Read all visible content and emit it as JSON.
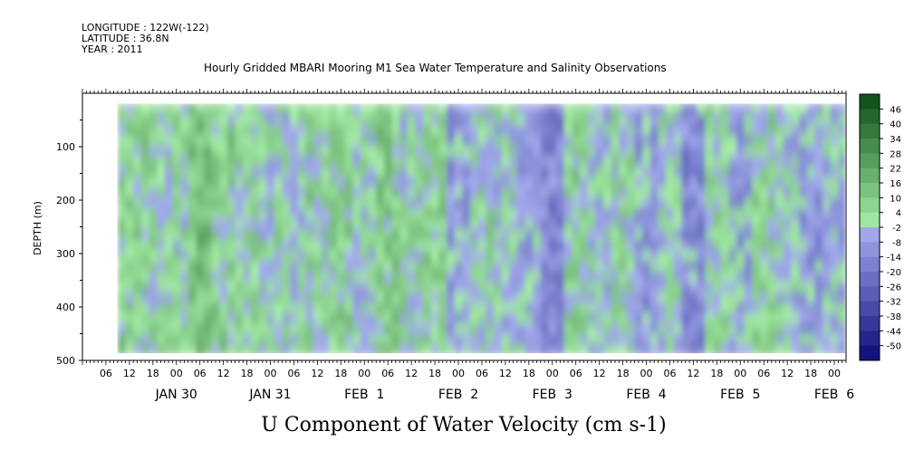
{
  "header": {
    "longitude": "LONGITUDE : 122W(-122)",
    "latitude": "LATITUDE : 36.8N",
    "year": "YEAR : 2011",
    "title": "Hourly Gridded MBARI Mooring M1 Sea Water Temperature and Salinity Observations"
  },
  "chart_data": {
    "type": "heatmap",
    "title": "U Component of Water Velocity (cm s-1)",
    "ylabel": "DEPTH (m)",
    "ylim": [
      500,
      0
    ],
    "data_depth_range": [
      20,
      490
    ],
    "yticks": [
      100,
      200,
      300,
      400,
      500
    ],
    "xlim": [
      "JAN 29 00",
      "FEB 6 03"
    ],
    "x_hour_ticks": [
      "06",
      "12",
      "18",
      "00",
      "06",
      "12",
      "18",
      "00",
      "06",
      "12",
      "18",
      "00",
      "06",
      "12",
      "18",
      "00",
      "06",
      "12",
      "18",
      "00",
      "06",
      "12",
      "18",
      "00",
      "06",
      "12",
      "18",
      "00",
      "06",
      "12",
      "18",
      "00"
    ],
    "x_day_labels": [
      "JAN 30",
      "JAN 31",
      "FEB  1",
      "FEB  2",
      "FEB  3",
      "FEB  4",
      "FEB  5",
      "FEB  6"
    ],
    "colorbar": {
      "levels": [
        -50,
        -44,
        -38,
        -32,
        -26,
        -20,
        -14,
        -8,
        -2,
        4,
        10,
        16,
        22,
        28,
        34,
        40,
        46
      ],
      "min": -50,
      "max": 50,
      "low_color": "#0a0a78",
      "mid_low": "#a0a8f0",
      "mid_high": "#a8f0a8",
      "high_color": "#0a4a14"
    },
    "time_bands_cms": [
      {
        "day": "JAN 29 12",
        "u": 8
      },
      {
        "day": "JAN 29 18",
        "u": 6
      },
      {
        "day": "JAN 30 00",
        "u": 4
      },
      {
        "day": "JAN 30 06",
        "u": 14
      },
      {
        "day": "JAN 30 12",
        "u": 8
      },
      {
        "day": "JAN 30 18",
        "u": 6
      },
      {
        "day": "JAN 31 00",
        "u": 4
      },
      {
        "day": "JAN 31 06",
        "u": 2
      },
      {
        "day": "JAN 31 12",
        "u": 6
      },
      {
        "day": "JAN 31 18",
        "u": 8
      },
      {
        "day": "FEB 1 00",
        "u": 2
      },
      {
        "day": "FEB 1 06",
        "u": 10
      },
      {
        "day": "FEB 1 12",
        "u": 4
      },
      {
        "day": "FEB 1 18",
        "u": 8
      },
      {
        "day": "FEB 2 00",
        "u": -6
      },
      {
        "day": "FEB 2 06",
        "u": 4
      },
      {
        "day": "FEB 2 12",
        "u": 2
      },
      {
        "day": "FEB 2 18",
        "u": -4
      },
      {
        "day": "FEB 3 00",
        "u": -12
      },
      {
        "day": "FEB 3 06",
        "u": 6
      },
      {
        "day": "FEB 3 12",
        "u": 0
      },
      {
        "day": "FEB 3 18",
        "u": 4
      },
      {
        "day": "FEB 4 00",
        "u": -6
      },
      {
        "day": "FEB 4 06",
        "u": 2
      },
      {
        "day": "FEB 4 12",
        "u": -10
      },
      {
        "day": "FEB 4 18",
        "u": 4
      },
      {
        "day": "FEB 5 00",
        "u": -4
      },
      {
        "day": "FEB 5 06",
        "u": 6
      },
      {
        "day": "FEB 5 12",
        "u": 0
      },
      {
        "day": "FEB 5 18",
        "u": -6
      },
      {
        "day": "FEB 6 00",
        "u": -2
      }
    ]
  }
}
